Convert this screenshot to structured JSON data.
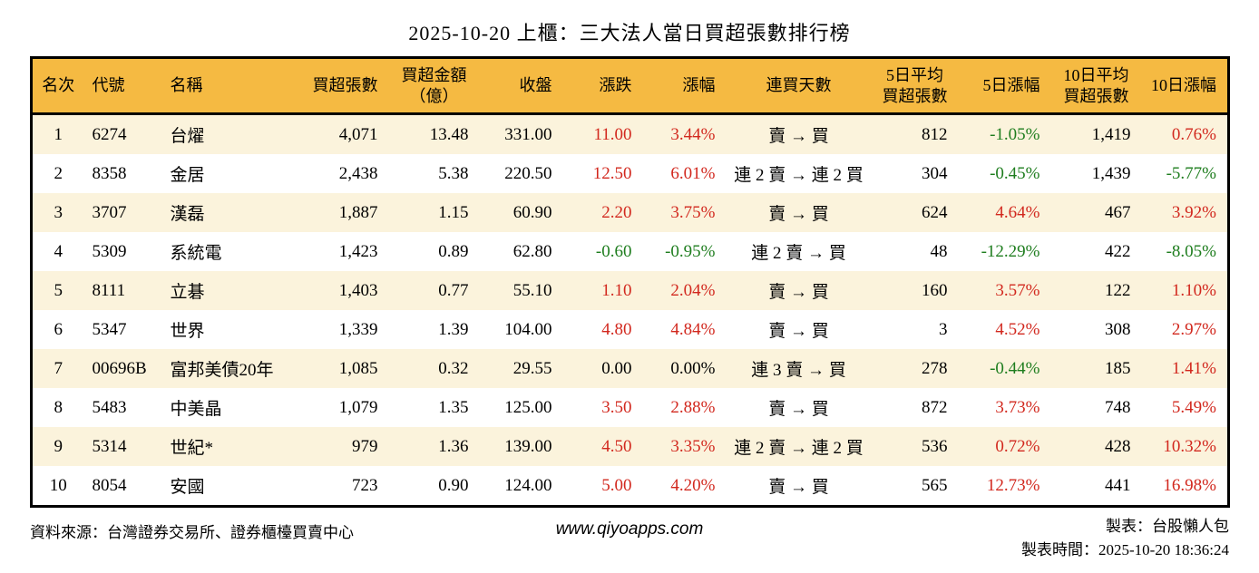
{
  "chart_data": {
    "type": "table",
    "title": "2025-10-20 上櫃：三大法人當日買超張數排行榜",
    "columns": [
      "名次",
      "代號",
      "名稱",
      "買超張數",
      "買超金額\n（億）",
      "收盤",
      "漲跌",
      "漲幅",
      "連買天數",
      "5日平均\n買超張數",
      "5日漲幅",
      "10日平均\n買超張數",
      "10日漲幅"
    ],
    "column_keys": [
      "rank",
      "code",
      "name",
      "net-buy-volume",
      "net-buy-amount",
      "close",
      "change",
      "change-pct",
      "buy-streak",
      "avg5-volume",
      "pct5",
      "avg10-volume",
      "pct10"
    ],
    "rows": [
      {
        "cells": [
          "1",
          "6274",
          "台燿",
          "4,071",
          "13.48",
          "331.00",
          {
            "t": "11.00",
            "c": "up"
          },
          {
            "t": "3.44%",
            "c": "up"
          },
          "賣 → 買",
          "812",
          {
            "t": "-1.05%",
            "c": "down"
          },
          "1,419",
          {
            "t": "0.76%",
            "c": "up"
          }
        ]
      },
      {
        "cells": [
          "2",
          "8358",
          "金居",
          "2,438",
          "5.38",
          "220.50",
          {
            "t": "12.50",
            "c": "up"
          },
          {
            "t": "6.01%",
            "c": "up"
          },
          "連 2 賣 → 連 2 買",
          "304",
          {
            "t": "-0.45%",
            "c": "down"
          },
          "1,439",
          {
            "t": "-5.77%",
            "c": "down"
          }
        ]
      },
      {
        "cells": [
          "3",
          "3707",
          "漢磊",
          "1,887",
          "1.15",
          "60.90",
          {
            "t": "2.20",
            "c": "up"
          },
          {
            "t": "3.75%",
            "c": "up"
          },
          "賣 → 買",
          "624",
          {
            "t": "4.64%",
            "c": "up"
          },
          "467",
          {
            "t": "3.92%",
            "c": "up"
          }
        ]
      },
      {
        "cells": [
          "4",
          "5309",
          "系統電",
          "1,423",
          "0.89",
          "62.80",
          {
            "t": "-0.60",
            "c": "down"
          },
          {
            "t": "-0.95%",
            "c": "down"
          },
          "連 2 賣 → 買",
          "48",
          {
            "t": "-12.29%",
            "c": "down"
          },
          "422",
          {
            "t": "-8.05%",
            "c": "down"
          }
        ]
      },
      {
        "cells": [
          "5",
          "8111",
          "立碁",
          "1,403",
          "0.77",
          "55.10",
          {
            "t": "1.10",
            "c": "up"
          },
          {
            "t": "2.04%",
            "c": "up"
          },
          "賣 → 買",
          "160",
          {
            "t": "3.57%",
            "c": "up"
          },
          "122",
          {
            "t": "1.10%",
            "c": "up"
          }
        ]
      },
      {
        "cells": [
          "6",
          "5347",
          "世界",
          "1,339",
          "1.39",
          "104.00",
          {
            "t": "4.80",
            "c": "up"
          },
          {
            "t": "4.84%",
            "c": "up"
          },
          "賣 → 買",
          "3",
          {
            "t": "4.52%",
            "c": "up"
          },
          "308",
          {
            "t": "2.97%",
            "c": "up"
          }
        ]
      },
      {
        "cells": [
          "7",
          "00696B",
          "富邦美債20年",
          "1,085",
          "0.32",
          "29.55",
          "0.00",
          "0.00%",
          "連 3 賣 → 買",
          "278",
          {
            "t": "-0.44%",
            "c": "down"
          },
          "185",
          {
            "t": "1.41%",
            "c": "up"
          }
        ]
      },
      {
        "cells": [
          "8",
          "5483",
          "中美晶",
          "1,079",
          "1.35",
          "125.00",
          {
            "t": "3.50",
            "c": "up"
          },
          {
            "t": "2.88%",
            "c": "up"
          },
          "賣 → 買",
          "872",
          {
            "t": "3.73%",
            "c": "up"
          },
          "748",
          {
            "t": "5.49%",
            "c": "up"
          }
        ]
      },
      {
        "cells": [
          "9",
          "5314",
          "世紀*",
          "979",
          "1.36",
          "139.00",
          {
            "t": "4.50",
            "c": "up"
          },
          {
            "t": "3.35%",
            "c": "up"
          },
          "連 2 賣 → 連 2 買",
          "536",
          {
            "t": "0.72%",
            "c": "up"
          },
          "428",
          {
            "t": "10.32%",
            "c": "up"
          }
        ]
      },
      {
        "cells": [
          "10",
          "8054",
          "安國",
          "723",
          "0.90",
          "124.00",
          {
            "t": "5.00",
            "c": "up"
          },
          {
            "t": "4.20%",
            "c": "up"
          },
          "賣 → 買",
          "565",
          {
            "t": "12.73%",
            "c": "up"
          },
          "441",
          {
            "t": "16.98%",
            "c": "up"
          }
        ]
      }
    ]
  },
  "colors": {
    "header_bg": "#F5BA42",
    "row_alt_bg": "#FBF3DC",
    "up_red": "#D2281E",
    "down_green": "#1E7D1E",
    "border": "#000000"
  },
  "footer": {
    "source": "資料來源：台灣證券交易所、證券櫃檯買賣中心",
    "website": "www.qiyoapps.com",
    "author": "製表：台股懶人包",
    "timestamp": "製表時間：2025-10-20 18:36:24"
  }
}
